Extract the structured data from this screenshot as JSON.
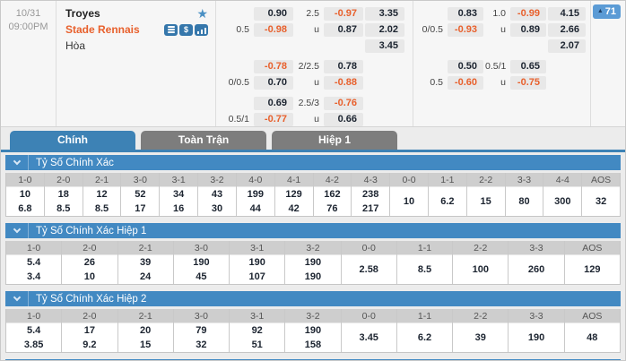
{
  "colors": {
    "accent_blue": "#4289c2",
    "tab_active_blue": "#3d82b5",
    "inactive_tab_gray": "#7d7d7d",
    "negative_orange": "#e8602c",
    "badge_blue": "#5b9bd5"
  },
  "match": {
    "date": "10/31",
    "time": "09:00PM",
    "home_team": "Troyes",
    "away_team": "Stade Rennais",
    "draw_label": "Hòa",
    "market_count": "71",
    "up_arrow": "▲",
    "favorite_icon": "★",
    "dollar_icon": "$"
  },
  "odds": {
    "halves": [
      {
        "name": "left",
        "blocks": [
          [
            [
              "",
              "0.90",
              "2.5",
              "-0.97",
              "3.35"
            ],
            [
              "0.5",
              "-0.98",
              "u",
              "0.87",
              "2.02"
            ],
            [
              "",
              "",
              "",
              "",
              "3.45"
            ]
          ],
          [
            [
              "",
              "-0.78",
              "2/2.5",
              "0.78",
              ""
            ],
            [
              "0/0.5",
              "0.70",
              "u",
              "-0.88",
              ""
            ]
          ],
          [
            [
              "",
              "0.69",
              "2.5/3",
              "-0.76",
              ""
            ],
            [
              "0.5/1",
              "-0.77",
              "u",
              "0.66",
              ""
            ]
          ]
        ]
      },
      {
        "name": "right",
        "blocks": [
          [
            [
              "",
              "0.83",
              "1.0",
              "-0.99",
              "4.15"
            ],
            [
              "0/0.5",
              "-0.93",
              "u",
              "0.89",
              "2.66"
            ],
            [
              "",
              "",
              "",
              "",
              "2.07"
            ]
          ],
          [
            [
              "",
              "0.50",
              "0.5/1",
              "0.65",
              ""
            ],
            [
              "0.5",
              "-0.60",
              "u",
              "-0.75",
              ""
            ]
          ]
        ]
      }
    ]
  },
  "tabs": [
    {
      "label": "Chính",
      "active": true
    },
    {
      "label": "Toàn Trận",
      "active": false
    },
    {
      "label": "Hiệp 1",
      "active": false
    }
  ],
  "sections": [
    {
      "title": "Tỷ Số Chính Xác",
      "columns": [
        {
          "score": "1-0",
          "home": "10",
          "away": "6.8"
        },
        {
          "score": "2-0",
          "home": "18",
          "away": "8.5"
        },
        {
          "score": "2-1",
          "home": "12",
          "away": "8.5"
        },
        {
          "score": "3-0",
          "home": "52",
          "away": "17"
        },
        {
          "score": "3-1",
          "home": "34",
          "away": "16"
        },
        {
          "score": "3-2",
          "home": "43",
          "away": "30"
        },
        {
          "score": "4-0",
          "home": "199",
          "away": "44"
        },
        {
          "score": "4-1",
          "home": "129",
          "away": "42"
        },
        {
          "score": "4-2",
          "home": "162",
          "away": "76"
        },
        {
          "score": "4-3",
          "home": "238",
          "away": "217"
        },
        {
          "score": "0-0",
          "value": "10"
        },
        {
          "score": "1-1",
          "value": "6.2"
        },
        {
          "score": "2-2",
          "value": "15"
        },
        {
          "score": "3-3",
          "value": "80"
        },
        {
          "score": "4-4",
          "value": "300"
        },
        {
          "score": "AOS",
          "value": "32"
        }
      ]
    },
    {
      "title": "Tỷ Số Chính Xác Hiệp 1",
      "columns": [
        {
          "score": "1-0",
          "home": "5.4",
          "away": "3.4"
        },
        {
          "score": "2-0",
          "home": "26",
          "away": "10"
        },
        {
          "score": "2-1",
          "home": "39",
          "away": "24"
        },
        {
          "score": "3-0",
          "home": "190",
          "away": "45"
        },
        {
          "score": "3-1",
          "home": "190",
          "away": "107"
        },
        {
          "score": "3-2",
          "home": "190",
          "away": "190"
        },
        {
          "score": "0-0",
          "value": "2.58"
        },
        {
          "score": "1-1",
          "value": "8.5"
        },
        {
          "score": "2-2",
          "value": "100"
        },
        {
          "score": "3-3",
          "value": "260"
        },
        {
          "score": "AOS",
          "value": "129"
        }
      ]
    },
    {
      "title": "Tỷ Số Chính Xác Hiệp 2",
      "columns": [
        {
          "score": "1-0",
          "home": "5.4",
          "away": "3.85"
        },
        {
          "score": "2-0",
          "home": "17",
          "away": "9.2"
        },
        {
          "score": "2-1",
          "home": "20",
          "away": "15"
        },
        {
          "score": "3-0",
          "home": "79",
          "away": "32"
        },
        {
          "score": "3-1",
          "home": "92",
          "away": "51"
        },
        {
          "score": "3-2",
          "home": "190",
          "away": "158"
        },
        {
          "score": "0-0",
          "value": "3.45"
        },
        {
          "score": "1-1",
          "value": "6.2"
        },
        {
          "score": "2-2",
          "value": "39"
        },
        {
          "score": "3-3",
          "value": "190"
        },
        {
          "score": "AOS",
          "value": "48"
        }
      ]
    }
  ]
}
